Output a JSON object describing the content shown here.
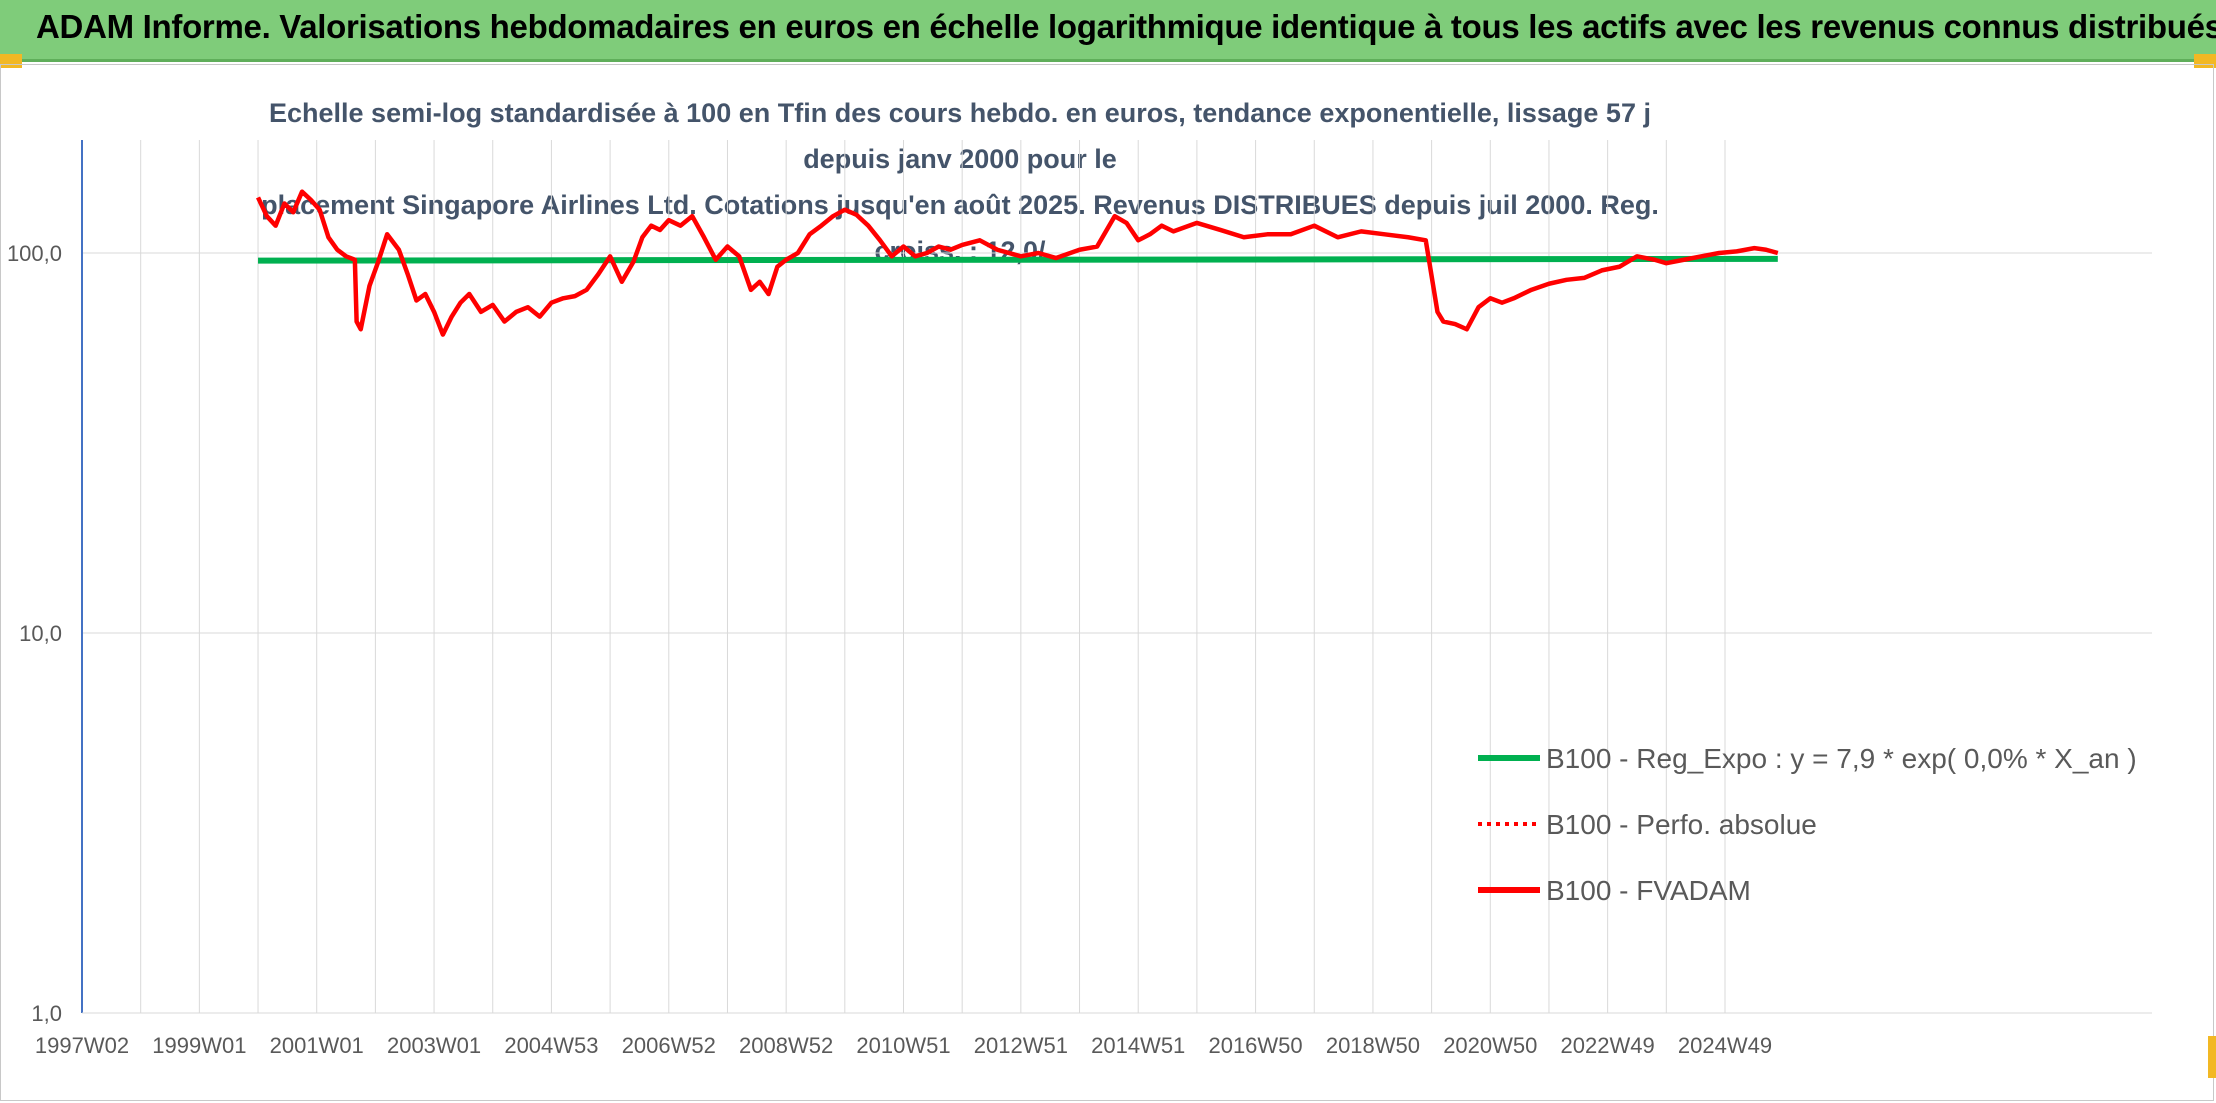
{
  "banner": {
    "title": "ADAM Informe. Valorisations hebdomadaires en euros en échelle logarithmique identique à tous les actifs avec les revenus connus distribués"
  },
  "colors": {
    "banner_bg": "#7fcc7a",
    "corner_accent": "#f2b824",
    "series_regression": "#00b050",
    "series_fvadam": "#ff0000",
    "series_perf": "#ff0000",
    "subtitle_text": "#44546a"
  },
  "chart_data": {
    "type": "line",
    "title_line1": "Echelle semi-log standardisée à 100 en Tfin des cours hebdo. en euros, tendance exponentielle, lissage 57 j depuis janv 2000 pour le",
    "title_line2": "placement Singapore Airlines Ltd. Cotations jusqu'en août 2025. Revenus DISTRIBUES depuis juil 2000. Reg. croiss. : 12,0/",
    "y_scale": "log",
    "ylim": [
      1,
      200
    ],
    "y_ticks": [
      {
        "value": 1,
        "label": "1,0"
      },
      {
        "value": 10,
        "label": "10,0"
      },
      {
        "value": 100,
        "label": "100,0"
      }
    ],
    "x_range": [
      1997.0,
      2025.9
    ],
    "x_ticks": [
      {
        "x": 1997.0,
        "label": "1997W02"
      },
      {
        "x": 1999.0,
        "label": "1999W01"
      },
      {
        "x": 2001.0,
        "label": "2001W01"
      },
      {
        "x": 2003.0,
        "label": "2003W01"
      },
      {
        "x": 2005.0,
        "label": "2004W53"
      },
      {
        "x": 2007.0,
        "label": "2006W52"
      },
      {
        "x": 2009.0,
        "label": "2008W52"
      },
      {
        "x": 2011.0,
        "label": "2010W51"
      },
      {
        "x": 2013.0,
        "label": "2012W51"
      },
      {
        "x": 2015.0,
        "label": "2014W51"
      },
      {
        "x": 2017.0,
        "label": "2016W50"
      },
      {
        "x": 2019.0,
        "label": "2018W50"
      },
      {
        "x": 2021.0,
        "label": "2020W50"
      },
      {
        "x": 2023.0,
        "label": "2022W49"
      },
      {
        "x": 2025.0,
        "label": "2024W49"
      }
    ],
    "grid": "vertical yearly gridlines and horizontal gridlines at 1, 10, 100",
    "legend_position": "lower-right",
    "series": [
      {
        "name": "B100 - Reg_Expo : y = 7,9 * exp( 0,0% *  X_an )",
        "style": "solid",
        "color": "#00b050",
        "x": [
          2000.0,
          2025.9
        ],
        "y": [
          95.5,
          96.5
        ]
      },
      {
        "name": "B100 - Perfo. absolue",
        "style": "dotted",
        "color": "#ff0000",
        "x": [],
        "y": []
      },
      {
        "name": "B100 - FVADAM",
        "style": "solid",
        "color": "#ff0000",
        "x": [
          2000.0,
          2000.15,
          2000.3,
          2000.45,
          2000.6,
          2000.75,
          2000.9,
          2001.05,
          2001.2,
          2001.35,
          2001.5,
          2001.65,
          2001.68,
          2001.75,
          2001.9,
          2002.05,
          2002.2,
          2002.4,
          2002.55,
          2002.7,
          2002.85,
          2003.0,
          2003.15,
          2003.3,
          2003.45,
          2003.6,
          2003.8,
          2004.0,
          2004.2,
          2004.4,
          2004.6,
          2004.8,
          2005.0,
          2005.2,
          2005.4,
          2005.6,
          2005.8,
          2006.0,
          2006.2,
          2006.4,
          2006.55,
          2006.7,
          2006.85,
          2007.0,
          2007.2,
          2007.4,
          2007.6,
          2007.8,
          2008.0,
          2008.2,
          2008.4,
          2008.55,
          2008.7,
          2008.85,
          2009.0,
          2009.2,
          2009.4,
          2009.6,
          2009.8,
          2010.0,
          2010.2,
          2010.4,
          2010.6,
          2010.8,
          2011.0,
          2011.2,
          2011.4,
          2011.6,
          2011.8,
          2012.0,
          2012.3,
          2012.6,
          2013.0,
          2013.3,
          2013.6,
          2014.0,
          2014.3,
          2014.6,
          2014.8,
          2015.0,
          2015.2,
          2015.4,
          2015.6,
          2016.0,
          2016.4,
          2016.8,
          2017.2,
          2017.6,
          2018.0,
          2018.4,
          2018.8,
          2019.2,
          2019.6,
          2019.9,
          2020.1,
          2020.2,
          2020.4,
          2020.6,
          2020.8,
          2021.0,
          2021.2,
          2021.4,
          2021.7,
          2022.0,
          2022.3,
          2022.6,
          2022.9,
          2023.2,
          2023.5,
          2023.8,
          2024.0,
          2024.3,
          2024.6,
          2024.9,
          2025.2,
          2025.5,
          2025.7,
          2025.9
        ],
        "y": [
          140,
          125,
          118,
          135,
          128,
          145,
          138,
          130,
          110,
          102,
          98,
          96,
          66,
          63,
          82,
          95,
          112,
          102,
          88,
          75,
          78,
          70,
          61,
          68,
          74,
          78,
          70,
          73,
          66,
          70,
          72,
          68,
          74,
          76,
          77,
          80,
          88,
          98,
          84,
          95,
          110,
          118,
          115,
          122,
          118,
          125,
          110,
          96,
          104,
          98,
          80,
          84,
          78,
          92,
          96,
          100,
          112,
          118,
          125,
          130,
          126,
          118,
          108,
          98,
          104,
          98,
          100,
          104,
          102,
          105,
          108,
          102,
          98,
          100,
          97,
          102,
          104,
          125,
          120,
          108,
          112,
          118,
          114,
          120,
          115,
          110,
          112,
          112,
          118,
          110,
          114,
          112,
          110,
          108,
          70,
          66,
          65,
          63,
          72,
          76,
          74,
          76,
          80,
          83,
          85,
          86,
          90,
          92,
          98,
          96,
          94,
          96,
          98,
          100,
          101,
          103,
          102,
          100
        ]
      }
    ]
  }
}
